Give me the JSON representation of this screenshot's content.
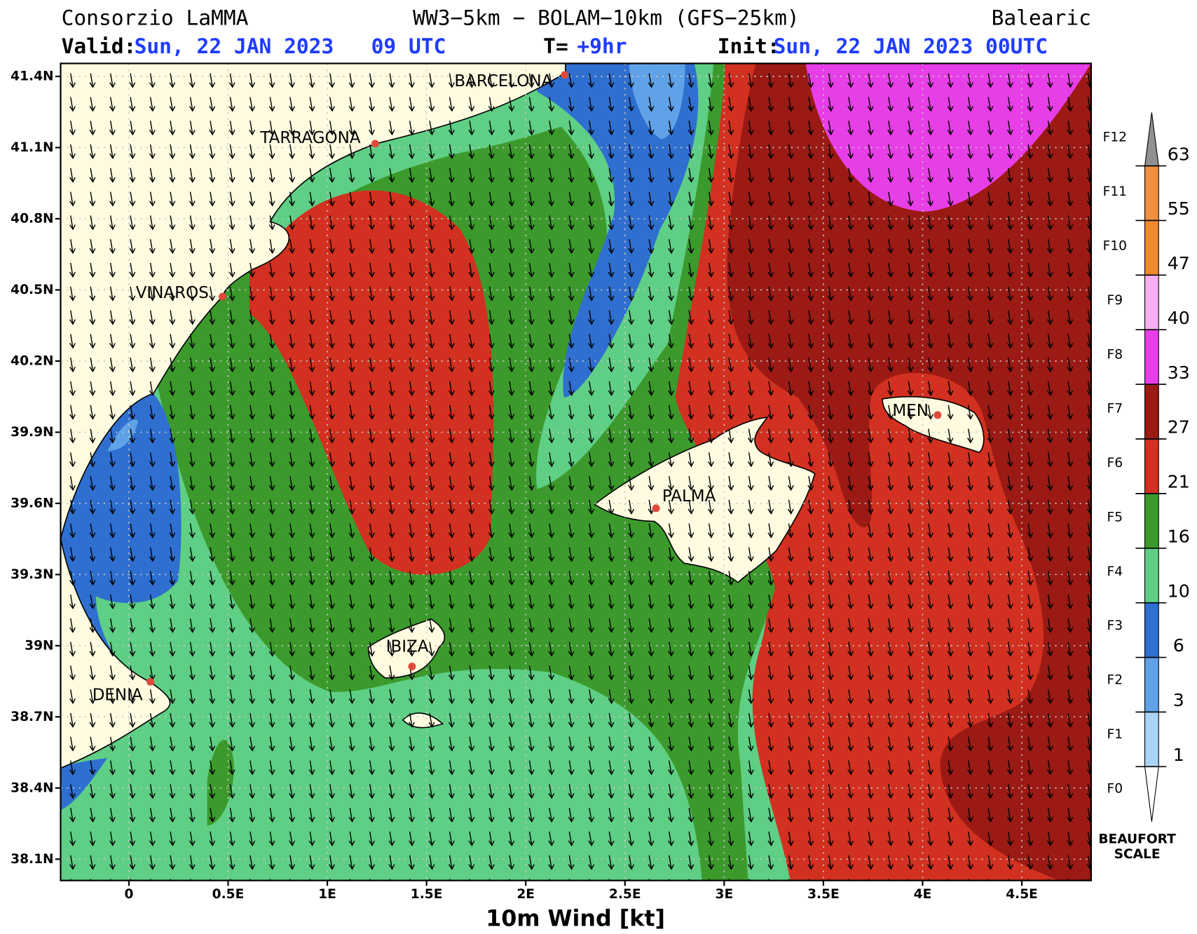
{
  "header": {
    "org": "Consorzio LaMMA",
    "model": "WW3−5km − BOLAM−10km (GFS−25km)",
    "region": "Balearic",
    "valid_label": "Valid:",
    "valid": "Sun, 22 JAN 2023   09 UTC",
    "t_label": "T=",
    "t": "+9hr",
    "init_label": "Init:",
    "init": "Sun, 22 JAN 2023 00UTC"
  },
  "map": {
    "lat_labels": [
      "41.4N",
      "41.1N",
      "40.8N",
      "40.5N",
      "40.2N",
      "39.9N",
      "39.6N",
      "39.3N",
      "39N",
      "38.7N",
      "38.4N",
      "38.1N"
    ],
    "lon_labels": [
      "0",
      "0.5E",
      "1E",
      "1.5E",
      "2E",
      "2.5E",
      "3E",
      "3.5E",
      "4E",
      "4.5E"
    ],
    "cities": [
      {
        "name": "BARCELONA"
      },
      {
        "name": "TARRAGONA"
      },
      {
        "name": "VINAROS"
      },
      {
        "name": "PALMA"
      },
      {
        "name": "MEN"
      },
      {
        "name": "IBIZA"
      },
      {
        "name": "DENIA"
      }
    ],
    "x_title": "10m Wind [kt]"
  },
  "legend": {
    "beaufort": [
      "F0",
      "F1",
      "F2",
      "F3",
      "F4",
      "F5",
      "F6",
      "F7",
      "F8",
      "F9",
      "F10",
      "F11",
      "F12"
    ],
    "knots": [
      "1",
      "3",
      "6",
      "10",
      "16",
      "21",
      "27",
      "33",
      "40",
      "47",
      "55",
      "63"
    ],
    "colors": [
      "#aad4f5",
      "#5fa2e8",
      "#2f6fd0",
      "#5fcf85",
      "#3c9a2c",
      "#d23020",
      "#9b1a14",
      "#e83ee8",
      "#f4b0f0",
      "#f08a30",
      "#f09040"
    ],
    "title_lines": [
      "BEAUFORT",
      "SCALE"
    ]
  }
}
